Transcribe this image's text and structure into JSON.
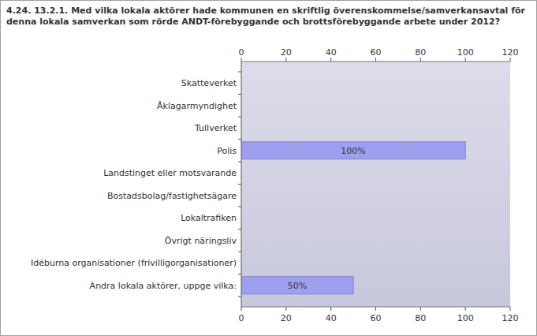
{
  "chart_data": {
    "type": "bar",
    "orientation": "horizontal",
    "title": "4.24. 13.2.1. Med vilka lokala aktörer hade kommunen en skriftlig överenskommelse/samverkansavtal för denna lokala samverkan som rörde ANDT-förebyggande och brottsförebyggande arbete under 2012?",
    "categories": [
      "Skatteverket",
      "Åklagarmyndighet",
      "Tullverket",
      "Polis",
      "Landstinget eller motsvarande",
      "Bostadsbolag/fastighetsägare",
      "Lokaltrafiken",
      "Övrigt näringsliv",
      "Idéburna organisationer (frivilligorganisationer)",
      "Andra lokala aktörer, uppge vilka:"
    ],
    "values": [
      0,
      0,
      0,
      100,
      0,
      0,
      0,
      0,
      0,
      50
    ],
    "value_labels": [
      null,
      null,
      null,
      "100%",
      null,
      null,
      null,
      null,
      null,
      "50%"
    ],
    "data_labels": true,
    "color": "#9f9ff0",
    "xlim": [
      0,
      120
    ],
    "xticks": [
      0,
      20,
      40,
      60,
      80,
      100,
      120
    ],
    "grid": false
  }
}
